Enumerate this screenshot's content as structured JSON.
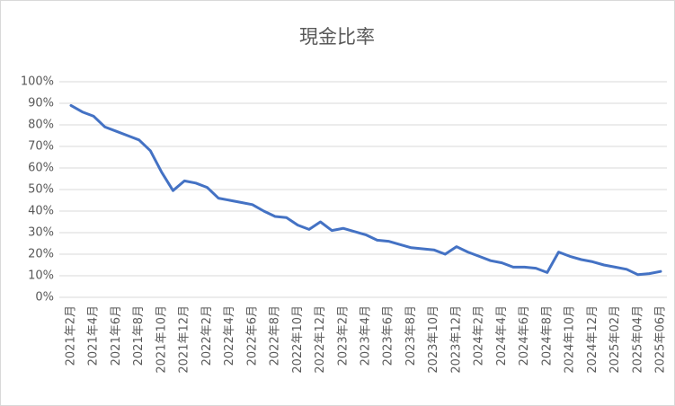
{
  "chart_data": {
    "type": "line",
    "title": "現金比率",
    "categories": [
      "2021年2月",
      null,
      "2021年4月",
      null,
      "2021年6月",
      null,
      "2021年8月",
      null,
      "2021年10月",
      null,
      "2021年12月",
      null,
      "2022年2月",
      null,
      "2022年4月",
      null,
      "2022年6月",
      null,
      "2022年8月",
      null,
      "2022年10月",
      null,
      "2022年12月",
      null,
      "2023年2月",
      null,
      "2023年4月",
      null,
      "2023年6月",
      null,
      "2023年8月",
      null,
      "2023年10月",
      null,
      "2023年12月",
      null,
      "2024年2月",
      null,
      "2024年4月",
      null,
      "2024年6月",
      null,
      "2024年8月",
      null,
      "2024年10月",
      null,
      "2024年12月",
      null,
      "2025年02月",
      null,
      "2025年04月",
      null,
      "2025年06月"
    ],
    "series": [
      {
        "name": "現金比率",
        "color": "#4472c4",
        "values": [
          89,
          86,
          84,
          79,
          77,
          75,
          73,
          68,
          58,
          49.5,
          54,
          53,
          51,
          46,
          45,
          44,
          43,
          40,
          37.5,
          37,
          33.5,
          31.5,
          35,
          31,
          32,
          30.5,
          29,
          26.5,
          26,
          24.5,
          23,
          22.5,
          22,
          20,
          23.5,
          21,
          19,
          17,
          16,
          14,
          14,
          13.5,
          11.5,
          21,
          19,
          17.5,
          16.5,
          15,
          14,
          13,
          10.5,
          11,
          12
        ]
      }
    ],
    "ylim": [
      0,
      100
    ],
    "yticks": [
      {
        "value": 0,
        "label": "0%"
      },
      {
        "value": 10,
        "label": "10%"
      },
      {
        "value": 20,
        "label": "20%"
      },
      {
        "value": 30,
        "label": "30%"
      },
      {
        "value": 40,
        "label": "40%"
      },
      {
        "value": 50,
        "label": "50%"
      },
      {
        "value": 60,
        "label": "60%"
      },
      {
        "value": 70,
        "label": "70%"
      },
      {
        "value": 80,
        "label": "80%"
      },
      {
        "value": 90,
        "label": "90%"
      },
      {
        "value": 100,
        "label": "100%"
      }
    ],
    "grid": true
  }
}
